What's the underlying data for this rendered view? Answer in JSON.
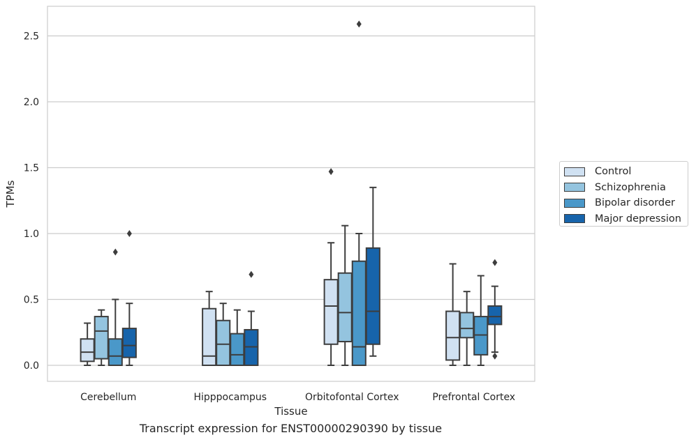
{
  "chart_data": {
    "type": "box",
    "xlabel": "Tissue",
    "ylabel": "TPMs",
    "caption": "Transcript expression for ENST00000290390 by tissue",
    "ylim": [
      -0.13,
      2.73
    ],
    "yticks": [
      0.0,
      0.5,
      1.0,
      1.5,
      2.0,
      2.5
    ],
    "ytick_labels": [
      "0.0",
      "0.5",
      "1.0",
      "1.5",
      "2.0",
      "2.5"
    ],
    "categories": [
      "Cerebellum",
      "Hipppocampus",
      "Orbitofontal Cortex",
      "Prefrontal Cortex"
    ],
    "grid": "horizontal",
    "legend_position": "right",
    "series": [
      {
        "name": "Control",
        "color": "#d0e1f2",
        "boxes": [
          {
            "whislo": 0.0,
            "q1": 0.03,
            "med": 0.1,
            "q3": 0.2,
            "whishi": 0.32,
            "fliers": []
          },
          {
            "whislo": 0.0,
            "q1": 0.0,
            "med": 0.07,
            "q3": 0.43,
            "whishi": 0.56,
            "fliers": []
          },
          {
            "whislo": 0.0,
            "q1": 0.16,
            "med": 0.45,
            "q3": 0.65,
            "whishi": 0.93,
            "fliers": [
              1.47
            ]
          },
          {
            "whislo": 0.0,
            "q1": 0.04,
            "med": 0.21,
            "q3": 0.41,
            "whishi": 0.77,
            "fliers": []
          }
        ]
      },
      {
        "name": "Schizophrenia",
        "color": "#94c4df",
        "boxes": [
          {
            "whislo": 0.0,
            "q1": 0.05,
            "med": 0.26,
            "q3": 0.37,
            "whishi": 0.42,
            "fliers": []
          },
          {
            "whislo": 0.0,
            "q1": 0.0,
            "med": 0.16,
            "q3": 0.34,
            "whishi": 0.47,
            "fliers": []
          },
          {
            "whislo": 0.0,
            "q1": 0.18,
            "med": 0.4,
            "q3": 0.7,
            "whishi": 1.06,
            "fliers": []
          },
          {
            "whislo": 0.0,
            "q1": 0.21,
            "med": 0.28,
            "q3": 0.4,
            "whishi": 0.56,
            "fliers": []
          }
        ]
      },
      {
        "name": "Bipolar disorder",
        "color": "#4a98c9",
        "boxes": [
          {
            "whislo": 0.0,
            "q1": 0.0,
            "med": 0.07,
            "q3": 0.2,
            "whishi": 0.5,
            "fliers": [
              0.86
            ]
          },
          {
            "whislo": 0.0,
            "q1": 0.0,
            "med": 0.08,
            "q3": 0.24,
            "whishi": 0.42,
            "fliers": []
          },
          {
            "whislo": 0.0,
            "q1": 0.0,
            "med": 0.14,
            "q3": 0.79,
            "whishi": 1.0,
            "fliers": [
              2.59
            ]
          },
          {
            "whislo": 0.0,
            "q1": 0.08,
            "med": 0.23,
            "q3": 0.37,
            "whishi": 0.68,
            "fliers": []
          }
        ]
      },
      {
        "name": "Major depression",
        "color": "#1764ab",
        "boxes": [
          {
            "whislo": 0.0,
            "q1": 0.06,
            "med": 0.15,
            "q3": 0.28,
            "whishi": 0.47,
            "fliers": [
              1.0
            ]
          },
          {
            "whislo": 0.0,
            "q1": 0.0,
            "med": 0.14,
            "q3": 0.27,
            "whishi": 0.41,
            "fliers": [
              0.69
            ]
          },
          {
            "whislo": 0.07,
            "q1": 0.16,
            "med": 0.41,
            "q3": 0.89,
            "whishi": 1.35,
            "fliers": []
          },
          {
            "whislo": 0.1,
            "q1": 0.31,
            "med": 0.37,
            "q3": 0.45,
            "whishi": 0.6,
            "fliers": [
              0.07,
              0.78
            ]
          }
        ]
      }
    ]
  }
}
